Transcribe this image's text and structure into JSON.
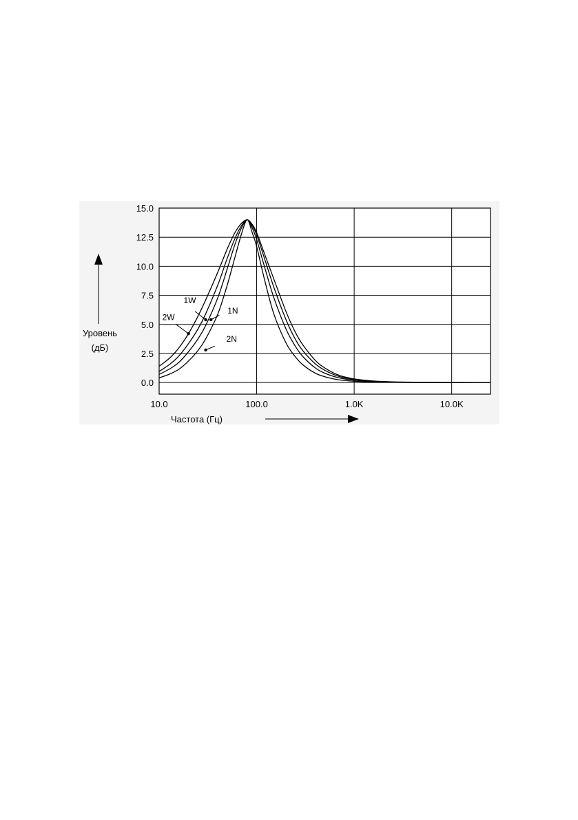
{
  "chart_data": {
    "type": "line",
    "title": "",
    "xlabel": "Частота (Гц)",
    "ylabel": "Уровень (дБ)",
    "ylabel_lines": [
      "Уровень",
      "(дБ)"
    ],
    "x_scale": "log",
    "xlim": [
      10,
      25000
    ],
    "ylim": [
      -1.0,
      15.0
    ],
    "x_ticks": [
      10,
      100,
      1000,
      10000
    ],
    "x_tick_labels": [
      "10.0",
      "100.0",
      "1.0K",
      "10.0K"
    ],
    "y_ticks": [
      0.0,
      2.5,
      5.0,
      7.5,
      10.0,
      12.5,
      15.0
    ],
    "y_tick_labels": [
      "0.0",
      "2.5",
      "5.0",
      "7.5",
      "10.0",
      "12.5",
      "15.0"
    ],
    "grid": true,
    "series": [
      {
        "name": "2W",
        "x": [
          10,
          13,
          16,
          20,
          25,
          30,
          40,
          50,
          60,
          70,
          80,
          90,
          100,
          120,
          150,
          200,
          250,
          300,
          400,
          500,
          700,
          1000,
          1500,
          2000,
          3000,
          5000,
          10000,
          25000
        ],
        "y": [
          1.4,
          2.15,
          3.0,
          4.2,
          5.7,
          7.1,
          9.5,
          11.5,
          12.9,
          13.7,
          14.0,
          13.6,
          12.9,
          11.1,
          8.9,
          6.1,
          4.3,
          3.2,
          1.9,
          1.25,
          0.62,
          0.31,
          0.15,
          0.09,
          0.04,
          0.02,
          0.01,
          0.0
        ]
      },
      {
        "name": "1W",
        "x": [
          10,
          13,
          16,
          20,
          25,
          30,
          40,
          50,
          60,
          70,
          80,
          90,
          100,
          120,
          150,
          200,
          250,
          300,
          400,
          500,
          700,
          1000,
          1500,
          2000,
          3000,
          5000,
          10000,
          25000
        ],
        "y": [
          0.95,
          1.6,
          2.3,
          3.35,
          4.6,
          5.9,
          8.4,
          10.7,
          12.4,
          13.5,
          14.0,
          13.5,
          12.7,
          10.7,
          8.2,
          5.4,
          3.7,
          2.7,
          1.6,
          1.05,
          0.52,
          0.26,
          0.12,
          0.07,
          0.03,
          0.01,
          0.0,
          0.0
        ]
      },
      {
        "name": "1N",
        "x": [
          10,
          13,
          16,
          20,
          25,
          30,
          40,
          50,
          60,
          70,
          80,
          90,
          100,
          120,
          150,
          200,
          250,
          300,
          400,
          500,
          700,
          1000,
          1500,
          2000,
          3000,
          5000,
          10000,
          25000
        ],
        "y": [
          0.7,
          1.2,
          1.75,
          2.65,
          3.75,
          4.9,
          7.3,
          9.8,
          11.9,
          13.3,
          14.0,
          13.3,
          12.3,
          10.0,
          7.3,
          4.6,
          3.1,
          2.2,
          1.25,
          0.8,
          0.4,
          0.2,
          0.09,
          0.05,
          0.02,
          0.01,
          0.0,
          0.0
        ]
      },
      {
        "name": "2N",
        "x": [
          10,
          13,
          16,
          20,
          25,
          30,
          40,
          50,
          60,
          70,
          80,
          90,
          100,
          120,
          150,
          200,
          250,
          300,
          400,
          500,
          700,
          1000,
          1500,
          2000,
          3000,
          5000,
          10000,
          25000
        ],
        "y": [
          0.4,
          0.75,
          1.15,
          1.85,
          2.75,
          3.75,
          5.9,
          8.4,
          10.8,
          12.8,
          14.0,
          12.9,
          11.7,
          8.9,
          5.9,
          3.4,
          2.2,
          1.5,
          0.8,
          0.5,
          0.23,
          0.11,
          0.05,
          0.03,
          0.01,
          0.0,
          0.0,
          0.0
        ]
      }
    ],
    "annotations": [
      {
        "text": "2W",
        "series": "2W",
        "x": 20,
        "y": 4.2
      },
      {
        "text": "1W",
        "series": "1W",
        "x": 30,
        "y": 5.4
      },
      {
        "text": "1N",
        "series": "1N",
        "x": 34,
        "y": 5.4
      },
      {
        "text": "2N",
        "series": "2N",
        "x": 30,
        "y": 2.8
      }
    ]
  }
}
